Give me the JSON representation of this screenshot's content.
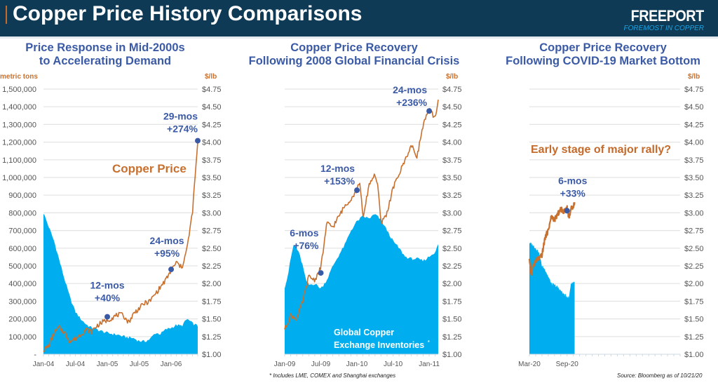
{
  "header": {
    "title": "Copper Price History Comparisons",
    "logo": "FREEPORT",
    "logo_tagline": "FOREMOST IN COPPER",
    "colors": {
      "background": "#0e3a56",
      "accent": "#c46a2b",
      "tagline": "#1da3e0"
    }
  },
  "colors": {
    "price_line": "#c8702e",
    "inventory_area": "#00aeef",
    "annotation": "#3b5aa6",
    "marker": "#3b5aa6",
    "grid": "#e3e3e3",
    "axis_label": "#c8702e",
    "tick": "#555555"
  },
  "footnotes": {
    "inventories": "* Includes LME, COMEX and Shanghai exchanges",
    "source": "Source: Bloomberg as of 10/21/20"
  },
  "chart_data": [
    {
      "type": "area+line",
      "title": "Price Response in Mid-2000s to Accelerating Demand",
      "title_lines": [
        "Price Response in Mid-2000s",
        "to Accelerating Demand"
      ],
      "ylabel_left": "metric tons",
      "ylabel_right": "$/lb",
      "ylim_left": [
        0,
        1500000
      ],
      "ylim_right": [
        1.0,
        4.75
      ],
      "yticks_left": [
        "-",
        "100,000",
        "200,000",
        "300,000",
        "400,000",
        "500,000",
        "600,000",
        "700,000",
        "800,000",
        "900,000",
        "1,000,000",
        "1,100,000",
        "1,200,000",
        "1,300,000",
        "1,400,000",
        "1,500,000"
      ],
      "yticks_right": [
        "$1.00",
        "$1.25",
        "$1.50",
        "$1.75",
        "$2.00",
        "$2.25",
        "$2.50",
        "$2.75",
        "$3.00",
        "$3.25",
        "$3.50",
        "$3.75",
        "$4.00",
        "$4.25",
        "$4.50",
        "$4.75"
      ],
      "xticks": [
        "Jan-04",
        "Jul-04",
        "Jan-05",
        "Jul-05",
        "Jan-06"
      ],
      "x_range_months": [
        0,
        29
      ],
      "grid": true,
      "series": [
        {
          "name": "Global Copper Exchange Inventories",
          "axis": "left",
          "kind": "area",
          "x": [
            0,
            1,
            2,
            3,
            4,
            5,
            6,
            7,
            8,
            9,
            10,
            11,
            12,
            13,
            14,
            15,
            16,
            17,
            18,
            19,
            20,
            21,
            22,
            23,
            24,
            25,
            26,
            27,
            28,
            29
          ],
          "values": [
            800000,
            720000,
            640000,
            530000,
            420000,
            320000,
            240000,
            200000,
            170000,
            150000,
            140000,
            130000,
            120000,
            115000,
            110000,
            100000,
            95000,
            90000,
            75000,
            72000,
            85000,
            120000,
            115000,
            140000,
            150000,
            165000,
            160000,
            200000,
            175000,
            160000
          ]
        },
        {
          "name": "Copper Price",
          "axis": "right",
          "kind": "line",
          "x": [
            0,
            1,
            2,
            3,
            4,
            5,
            6,
            7,
            8,
            9,
            10,
            11,
            12,
            13,
            14,
            15,
            16,
            17,
            18,
            19,
            20,
            21,
            22,
            23,
            24,
            25,
            26,
            27,
            28,
            28.5,
            29
          ],
          "values": [
            1.05,
            1.12,
            1.3,
            1.38,
            1.3,
            1.18,
            1.22,
            1.28,
            1.35,
            1.32,
            1.4,
            1.45,
            1.48,
            1.52,
            1.56,
            1.55,
            1.45,
            1.58,
            1.65,
            1.72,
            1.75,
            1.85,
            1.95,
            2.05,
            2.18,
            2.3,
            2.22,
            2.5,
            3.0,
            3.5,
            4.0
          ]
        }
      ],
      "series_label": "Copper Price",
      "annotations": [
        {
          "label": "12-mos",
          "change": "+40%",
          "x": 12,
          "price": 1.53
        },
        {
          "label": "24-mos",
          "change": "+95%",
          "x": 24,
          "price": 2.2
        },
        {
          "label": "29-mos",
          "change": "+274%",
          "x": 29,
          "price": 4.02
        }
      ]
    },
    {
      "type": "area+line",
      "title": "Copper Price Recovery Following 2008 Global Financial Crisis",
      "title_lines": [
        "Copper Price Recovery",
        "Following 2008 Global Financial Crisis"
      ],
      "ylabel_right": "$/lb",
      "ylim_right": [
        1.0,
        4.75
      ],
      "yticks_right": [
        "$1.00",
        "$1.25",
        "$1.50",
        "$1.75",
        "$2.00",
        "$2.25",
        "$2.50",
        "$2.75",
        "$3.00",
        "$3.25",
        "$3.50",
        "$3.75",
        "$4.00",
        "$4.25",
        "$4.50",
        "$4.75"
      ],
      "xticks": [
        "Jan-09",
        "Jul-09",
        "Jan-10",
        "Jul-10",
        "Jan-11"
      ],
      "x_range_months": [
        0,
        25.5
      ],
      "grid": true,
      "series": [
        {
          "name": "Global Copper Exchange Inventories",
          "axis": "left",
          "kind": "area",
          "x": [
            0,
            0.5,
            1,
            1.5,
            2,
            2.5,
            3,
            3.5,
            4,
            5,
            6,
            7,
            8,
            9,
            10,
            11,
            12,
            13,
            14,
            15,
            16,
            17,
            18,
            19,
            20,
            21,
            22,
            23,
            24,
            25,
            25.5
          ],
          "values_price_scale": [
            1.95,
            2.1,
            2.35,
            2.55,
            2.5,
            2.4,
            2.25,
            2.05,
            1.98,
            2.0,
            1.93,
            2.05,
            2.25,
            2.4,
            2.55,
            2.75,
            2.88,
            2.95,
            2.92,
            2.98,
            2.9,
            2.75,
            2.6,
            2.5,
            2.38,
            2.35,
            2.35,
            2.32,
            2.38,
            2.45,
            2.55
          ]
        },
        {
          "name": "Copper Price",
          "axis": "right",
          "kind": "line",
          "x": [
            0,
            1,
            2,
            3,
            4,
            5,
            6,
            7,
            8,
            9,
            10,
            11,
            12,
            12.5,
            13,
            14,
            15,
            15.5,
            16,
            17,
            18,
            19,
            20,
            21,
            22,
            23,
            24,
            25,
            25.5
          ],
          "values": [
            1.35,
            1.55,
            1.5,
            1.75,
            2.1,
            2.05,
            2.22,
            2.85,
            2.8,
            2.95,
            3.1,
            3.2,
            3.32,
            3.45,
            2.9,
            3.4,
            3.55,
            3.35,
            2.85,
            3.0,
            3.35,
            3.55,
            3.75,
            3.95,
            3.8,
            4.25,
            4.45,
            4.35,
            4.6
          ]
        }
      ],
      "series_label": "Global Copper Exchange Inventories*",
      "series_label_lines": [
        "Global Copper",
        "Exchange Inventories"
      ],
      "annotations": [
        {
          "label": "6-mos",
          "change": "+76%",
          "x": 6,
          "price": 2.15
        },
        {
          "label": "12-mos",
          "change": "+153%",
          "x": 12,
          "price": 3.32
        },
        {
          "label": "24-mos",
          "change": "+236%",
          "x": 24,
          "price": 4.44
        }
      ]
    },
    {
      "type": "area+line",
      "title": "Copper Price Recovery Following COVID-19 Market Bottom",
      "title_lines": [
        "Copper Price Recovery",
        "Following COVID-19 Market Bottom"
      ],
      "ylabel_right": "$/lb",
      "ylim_right": [
        1.0,
        4.75
      ],
      "yticks_right": [
        "$1.00",
        "$1.25",
        "$1.50",
        "$1.75",
        "$2.00",
        "$2.25",
        "$2.50",
        "$2.75",
        "$3.00",
        "$3.25",
        "$3.50",
        "$3.75",
        "$4.00",
        "$4.25",
        "$4.50",
        "$4.75"
      ],
      "xticks": [
        "Mar-20",
        "Sep-20"
      ],
      "x_range_months": [
        0,
        24
      ],
      "grid": true,
      "series": [
        {
          "name": "Global Copper Exchange Inventories",
          "axis": "left",
          "kind": "area",
          "x": [
            0,
            0.5,
            1,
            1.5,
            2,
            2.5,
            3,
            3.5,
            4,
            4.5,
            5,
            5.5,
            6,
            6.3,
            6.6,
            7.2
          ],
          "values_price_scale": [
            2.58,
            2.55,
            2.5,
            2.45,
            2.25,
            2.2,
            2.1,
            2.0,
            1.98,
            1.95,
            1.9,
            1.85,
            1.82,
            1.8,
            2.0,
            2.03
          ]
        },
        {
          "name": "Copper Price",
          "axis": "right",
          "kind": "line",
          "x": [
            0,
            0.3,
            0.6,
            1,
            1.5,
            2,
            2.5,
            3,
            3.5,
            4,
            4.5,
            5,
            5.5,
            6,
            6.3,
            6.6,
            7.0,
            7.2
          ],
          "values": [
            2.35,
            2.12,
            2.25,
            2.32,
            2.35,
            2.4,
            2.65,
            2.75,
            2.95,
            2.9,
            2.98,
            3.05,
            3.02,
            3.08,
            2.92,
            3.05,
            3.1,
            3.15
          ]
        }
      ],
      "series_label": "Early stage of major rally?",
      "annotations": [
        {
          "label": "6-mos",
          "change": "+33%",
          "x": 6,
          "price": 3.03
        }
      ]
    }
  ]
}
